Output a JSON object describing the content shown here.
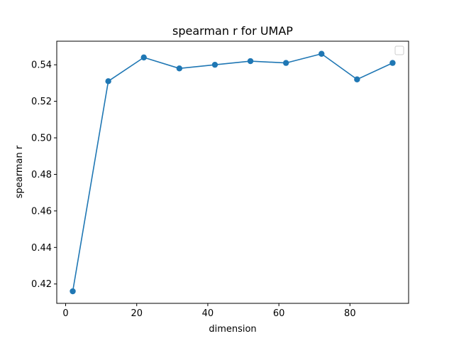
{
  "chart_data": {
    "type": "line",
    "title": "spearman r for UMAP",
    "xlabel": "dimension",
    "ylabel": "spearman r",
    "xlim": [
      -2.5,
      96.5
    ],
    "ylim": [
      0.4094,
      0.5529
    ],
    "xticks": [
      0,
      20,
      40,
      60,
      80
    ],
    "yticks": [
      0.42,
      0.44,
      0.46,
      0.48,
      0.5,
      0.52,
      0.54
    ],
    "ytick_labels": [
      "0.42",
      "0.44",
      "0.46",
      "0.48",
      "0.50",
      "0.52",
      "0.54"
    ],
    "grid": false,
    "legend": "top-right",
    "series": [
      {
        "color": "#1f77b4",
        "marker": "circle",
        "x": [
          2,
          12,
          22,
          32,
          42,
          52,
          62,
          72,
          82,
          92
        ],
        "y": [
          0.416,
          0.531,
          0.544,
          0.538,
          0.54,
          0.542,
          0.541,
          0.546,
          0.532,
          0.541
        ]
      }
    ]
  }
}
